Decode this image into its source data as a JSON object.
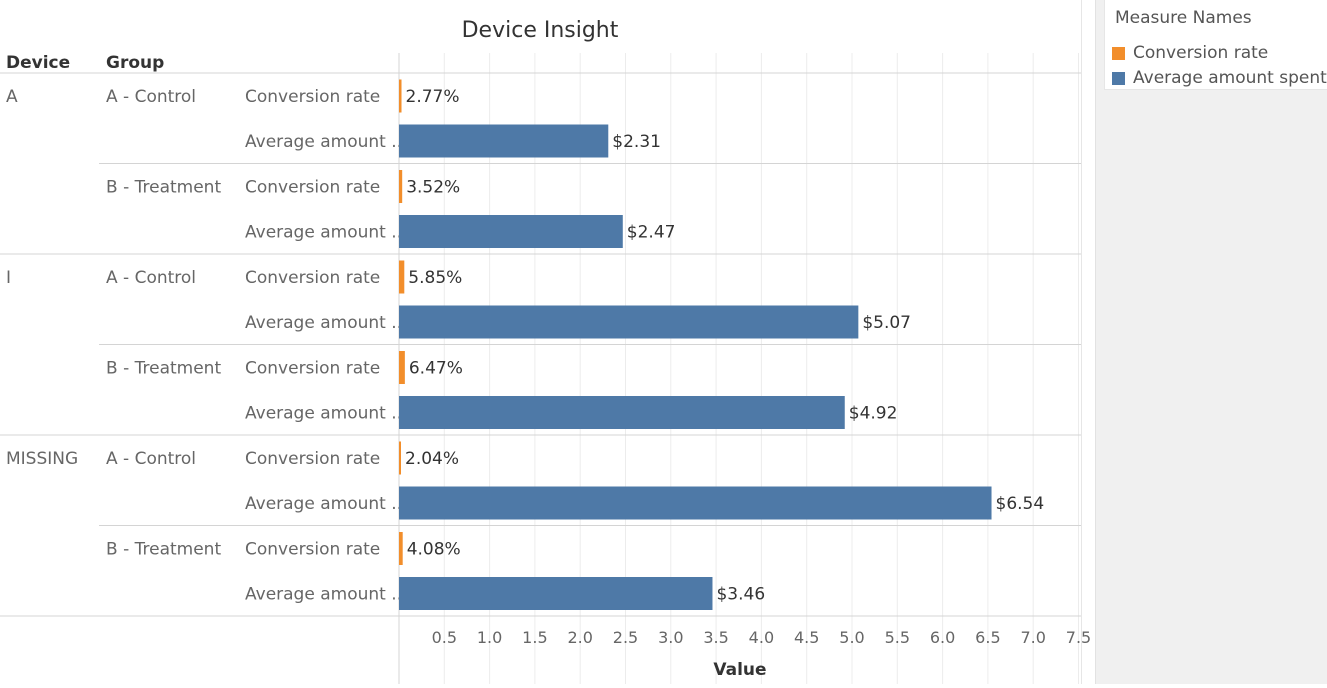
{
  "chart_data": {
    "type": "bar",
    "orientation": "horizontal",
    "title": "Device Insight",
    "row_headers": [
      "Device",
      "Group"
    ],
    "xlabel": "Value",
    "xlim": [
      0,
      7.5
    ],
    "x_ticks": [
      "0.5",
      "1.0",
      "1.5",
      "2.0",
      "2.5",
      "3.0",
      "3.5",
      "4.0",
      "4.5",
      "5.0",
      "5.5",
      "6.0",
      "6.5",
      "7.0",
      "7.5"
    ],
    "grid": true,
    "legend_title": "Measure Names",
    "legend_position": "right",
    "measures": [
      {
        "name": "Conversion rate",
        "display": "Conversion rate",
        "color": "#F28E2B"
      },
      {
        "name": "Average amount spent",
        "display": "Average amount ..",
        "color": "#4E79A7"
      }
    ],
    "devices": [
      {
        "device": "A",
        "groups": [
          {
            "group": "A - Control",
            "rows": [
              {
                "measure": "Conversion rate",
                "value": 0.0277,
                "label": "2.77%"
              },
              {
                "measure": "Average amount spent",
                "value": 2.31,
                "label": "$2.31"
              }
            ]
          },
          {
            "group": "B - Treatment",
            "rows": [
              {
                "measure": "Conversion rate",
                "value": 0.0352,
                "label": "3.52%"
              },
              {
                "measure": "Average amount spent",
                "value": 2.47,
                "label": "$2.47"
              }
            ]
          }
        ]
      },
      {
        "device": "I",
        "groups": [
          {
            "group": "A - Control",
            "rows": [
              {
                "measure": "Conversion rate",
                "value": 0.0585,
                "label": "5.85%"
              },
              {
                "measure": "Average amount spent",
                "value": 5.07,
                "label": "$5.07"
              }
            ]
          },
          {
            "group": "B - Treatment",
            "rows": [
              {
                "measure": "Conversion rate",
                "value": 0.0647,
                "label": "6.47%"
              },
              {
                "measure": "Average amount spent",
                "value": 4.92,
                "label": "$4.92"
              }
            ]
          }
        ]
      },
      {
        "device": "MISSING",
        "groups": [
          {
            "group": "A - Control",
            "rows": [
              {
                "measure": "Conversion rate",
                "value": 0.0204,
                "label": "2.04%"
              },
              {
                "measure": "Average amount spent",
                "value": 6.54,
                "label": "$6.54"
              }
            ]
          },
          {
            "group": "B - Treatment",
            "rows": [
              {
                "measure": "Conversion rate",
                "value": 0.0408,
                "label": "4.08%"
              },
              {
                "measure": "Average amount spent",
                "value": 3.46,
                "label": "$3.46"
              }
            ]
          }
        ]
      }
    ]
  }
}
